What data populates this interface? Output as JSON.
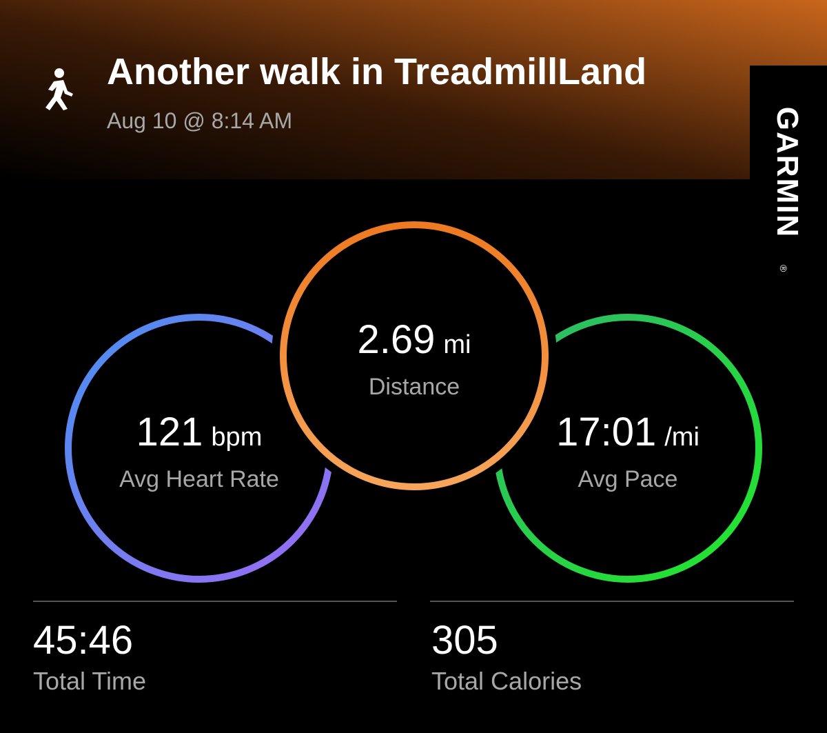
{
  "header": {
    "title": "Another walk in TreadmillLand",
    "subtitle": "Aug 10 @ 8:14 AM"
  },
  "brand": {
    "name": "GARMIN",
    "mark": "®"
  },
  "rings": [
    {
      "value": "121",
      "unit": "bpm",
      "label": "Avg Heart Rate"
    },
    {
      "value": "2.69",
      "unit": "mi",
      "label": "Distance"
    },
    {
      "value": "17:01",
      "unit": "/mi",
      "label": "Avg Pace"
    }
  ],
  "stats": [
    {
      "value": "45:46",
      "label": "Total Time"
    },
    {
      "value": "305",
      "label": "Total Calories"
    }
  ]
}
